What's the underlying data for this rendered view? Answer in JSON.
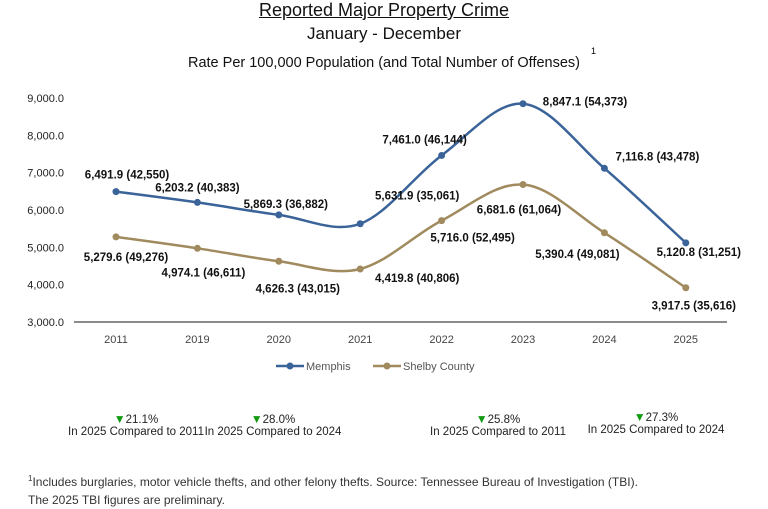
{
  "title": "Reported Major Property Crime",
  "subtitle": "January - December",
  "rate_label": "Rate Per 100,000 Population (and Total Number of Offenses)",
  "footnote_marker": "1",
  "chart_data": {
    "type": "line",
    "categories": [
      "2011",
      "2019",
      "2020",
      "2021",
      "2022",
      "2023",
      "2024",
      "2025"
    ],
    "ylim": [
      3000,
      9000
    ],
    "yticks": [
      "3,000.0",
      "4,000.0",
      "5,000.0",
      "6,000.0",
      "7,000.0",
      "8,000.0",
      "9,000.0"
    ],
    "grid": false,
    "legend": "bottom",
    "series": [
      {
        "name": "Memphis",
        "color": "#3a6399",
        "values": [
          6491.9,
          6203.2,
          5869.3,
          5631.9,
          7461.0,
          8847.1,
          7116.8,
          5120.8
        ],
        "labels": [
          "6,491.9 (42,550)",
          "6,203.2 (40,383)",
          "5,869.3 (36,882)",
          "5,631.9 (35,061)",
          "7,461.0 (46,144)",
          "8,847.1 (54,373)",
          "7,116.8 (43,478)",
          "5,120.8 (31,251)"
        ]
      },
      {
        "name": "Shelby County",
        "color": "#a08a5e",
        "values": [
          5279.6,
          4974.1,
          4626.3,
          4419.8,
          5716.0,
          6681.6,
          5390.4,
          3917.5
        ],
        "labels": [
          "5,279.6 (49,276)",
          "4,974.1 (46,611)",
          "4,626.3 (43,015)",
          "4,419.8 (40,806)",
          "5,716.0 (52,495)",
          "6,681.6 (61,064)",
          "5,390.4 (49,081)",
          "3,917.5 (35,616)"
        ]
      }
    ]
  },
  "stats": [
    {
      "value": "21.1%",
      "text": "In 2025 Compared to 2011",
      "direction": "down"
    },
    {
      "value": "28.0%",
      "text": "In 2025 Compared to 2024",
      "direction": "down"
    },
    {
      "value": "25.8%",
      "text": "In 2025 Compared to 2011",
      "direction": "down"
    },
    {
      "value": "27.3%",
      "text": "In 2025 Compared to 2024",
      "direction": "down"
    }
  ],
  "footnote": {
    "sup": "1",
    "line1": "Includes burglaries, motor vehicle thefts, and other felony thefts.   Source: Tennessee Bureau of Investigation  (TBI).",
    "line2": "The 2025 TBI figures are preliminary."
  },
  "colors": {
    "memphis_rule": "#3b6fd4",
    "shelby_rule": "#9a6a1c",
    "down": "#139a13"
  }
}
